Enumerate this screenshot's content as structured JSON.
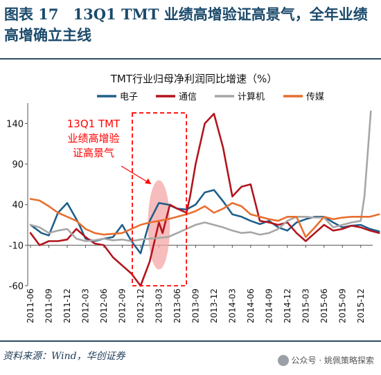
{
  "figure": {
    "title": "图表 17　13Q1 TMT 业绩高增验证高景气，全年业绩高增确立主线",
    "source": "资料来源：Wind，华创证券",
    "watermark": "公众号 · 姚佩策略探索"
  },
  "chart_data": {
    "type": "line",
    "title": "TMT行业归母净利润同比增速（%）",
    "xlabel": "",
    "ylabel": "",
    "ylim": [
      -60,
      160
    ],
    "yticks": [
      140,
      90,
      40,
      -10,
      -60
    ],
    "grid": false,
    "legend_position": "top",
    "x_labels": [
      "2011-06",
      "2011-09",
      "2011-12",
      "2012-03",
      "2012-06",
      "2012-09",
      "2012-12",
      "2013-03",
      "2013-06",
      "2013-09",
      "2013-12",
      "2014-03",
      "2014-06",
      "2014-09",
      "2014-12",
      "2015-03",
      "2015-06",
      "2015-09",
      "2015-12"
    ],
    "series": [
      {
        "name": "电子",
        "color": "#1f5f8b",
        "points": [
          [
            0,
            15
          ],
          [
            0.6,
            5
          ],
          [
            1,
            2
          ],
          [
            1.5,
            30
          ],
          [
            2,
            42
          ],
          [
            2.6,
            18
          ],
          [
            3,
            -2
          ],
          [
            3.5,
            -5
          ],
          [
            4,
            -2
          ],
          [
            4.5,
            0
          ],
          [
            5,
            15
          ],
          [
            5.5,
            -5
          ],
          [
            6,
            -20
          ],
          [
            6.5,
            20
          ],
          [
            7,
            42
          ],
          [
            7.5,
            40
          ],
          [
            8,
            35
          ],
          [
            8.5,
            34
          ],
          [
            9,
            40
          ],
          [
            9.5,
            55
          ],
          [
            10,
            58
          ],
          [
            10.5,
            44
          ],
          [
            11,
            28
          ],
          [
            11.5,
            25
          ],
          [
            12,
            20
          ],
          [
            12.5,
            16
          ],
          [
            13,
            20
          ],
          [
            13.5,
            12
          ],
          [
            14,
            8
          ],
          [
            14.5,
            18
          ],
          [
            15,
            22
          ],
          [
            15.5,
            25
          ],
          [
            16,
            25
          ],
          [
            16.5,
            18
          ],
          [
            17,
            12
          ],
          [
            17.5,
            14
          ],
          [
            18,
            15
          ],
          [
            18.5,
            10
          ],
          [
            19,
            7
          ]
        ]
      },
      {
        "name": "通信",
        "color": "#b3141c",
        "points": [
          [
            0,
            5
          ],
          [
            0.5,
            -10
          ],
          [
            1,
            -5
          ],
          [
            1.5,
            -5
          ],
          [
            2,
            -3
          ],
          [
            2.5,
            10
          ],
          [
            3,
            0
          ],
          [
            3.5,
            -8
          ],
          [
            4,
            -10
          ],
          [
            4.5,
            -25
          ],
          [
            5,
            -35
          ],
          [
            5.5,
            -45
          ],
          [
            6,
            -60
          ],
          [
            6.5,
            -30
          ],
          [
            7,
            18
          ],
          [
            7.2,
            5
          ],
          [
            7.6,
            40
          ],
          [
            8,
            35
          ],
          [
            8.5,
            30
          ],
          [
            8.7,
            50
          ],
          [
            9,
            90
          ],
          [
            9.5,
            140
          ],
          [
            10,
            152
          ],
          [
            10.5,
            110
          ],
          [
            11,
            50
          ],
          [
            11.5,
            62
          ],
          [
            12,
            65
          ],
          [
            12.5,
            20
          ],
          [
            13,
            18
          ],
          [
            13.5,
            15
          ],
          [
            14,
            18
          ],
          [
            14.5,
            5
          ],
          [
            15,
            -5
          ],
          [
            15.5,
            5
          ],
          [
            16,
            15
          ],
          [
            16.5,
            8
          ],
          [
            17,
            10
          ],
          [
            17.5,
            14
          ],
          [
            18,
            12
          ],
          [
            18.5,
            8
          ],
          [
            19,
            5
          ]
        ]
      },
      {
        "name": "计算机",
        "color": "#a6a6a6",
        "points": [
          [
            0,
            15
          ],
          [
            0.5,
            12
          ],
          [
            1,
            5
          ],
          [
            1.5,
            8
          ],
          [
            2,
            10
          ],
          [
            2.5,
            -2
          ],
          [
            3,
            -5
          ],
          [
            3.5,
            -4
          ],
          [
            4,
            -2
          ],
          [
            4.5,
            -4
          ],
          [
            5,
            -3
          ],
          [
            5.5,
            -5
          ],
          [
            6,
            -3
          ],
          [
            6.5,
            -2
          ],
          [
            7,
            -1
          ],
          [
            7.5,
            0
          ],
          [
            8,
            5
          ],
          [
            8.5,
            10
          ],
          [
            9,
            15
          ],
          [
            9.5,
            18
          ],
          [
            10,
            15
          ],
          [
            10.5,
            12
          ],
          [
            11,
            8
          ],
          [
            11.5,
            5
          ],
          [
            12,
            6
          ],
          [
            12.5,
            3
          ],
          [
            13,
            5
          ],
          [
            13.5,
            10
          ],
          [
            14,
            20
          ],
          [
            14.5,
            25
          ],
          [
            15,
            25
          ],
          [
            15.5,
            24
          ],
          [
            16,
            24
          ],
          [
            16.5,
            12
          ],
          [
            17,
            15
          ],
          [
            17.5,
            18
          ],
          [
            18,
            20
          ],
          [
            18.2,
            50
          ],
          [
            18.4,
            110
          ],
          [
            18.55,
            155
          ]
        ]
      },
      {
        "name": "传媒",
        "color": "#e86e2e",
        "points": [
          [
            0,
            47
          ],
          [
            0.5,
            45
          ],
          [
            1,
            38
          ],
          [
            1.5,
            30
          ],
          [
            2,
            25
          ],
          [
            2.5,
            20
          ],
          [
            3,
            10
          ],
          [
            3.5,
            5
          ],
          [
            4,
            3
          ],
          [
            4.5,
            4
          ],
          [
            5,
            5
          ],
          [
            5.5,
            10
          ],
          [
            6,
            15
          ],
          [
            6.5,
            18
          ],
          [
            7,
            20
          ],
          [
            7.5,
            22
          ],
          [
            8,
            25
          ],
          [
            8.5,
            28
          ],
          [
            9,
            32
          ],
          [
            9.5,
            38
          ],
          [
            10,
            30
          ],
          [
            10.5,
            35
          ],
          [
            11,
            42
          ],
          [
            11.5,
            38
          ],
          [
            12,
            28
          ],
          [
            12.5,
            25
          ],
          [
            13,
            22
          ],
          [
            13.5,
            20
          ],
          [
            14,
            25
          ],
          [
            14.5,
            25
          ],
          [
            15,
            0
          ],
          [
            15.5,
            12
          ],
          [
            16,
            25
          ],
          [
            16.5,
            22
          ],
          [
            17,
            24
          ],
          [
            17.5,
            25
          ],
          [
            18,
            25
          ],
          [
            18.5,
            25
          ],
          [
            19,
            28
          ]
        ]
      }
    ],
    "annotation": {
      "label_lines": [
        "13Q1 TMT",
        "业绩高增验",
        "证高景气"
      ],
      "color": "#ff0000",
      "box_x": [
        5.55,
        8.5
      ],
      "box_y": [
        -60,
        153
      ],
      "ellipse_center": [
        7,
        15
      ],
      "ellipse_radius": [
        0.6,
        55
      ]
    }
  }
}
